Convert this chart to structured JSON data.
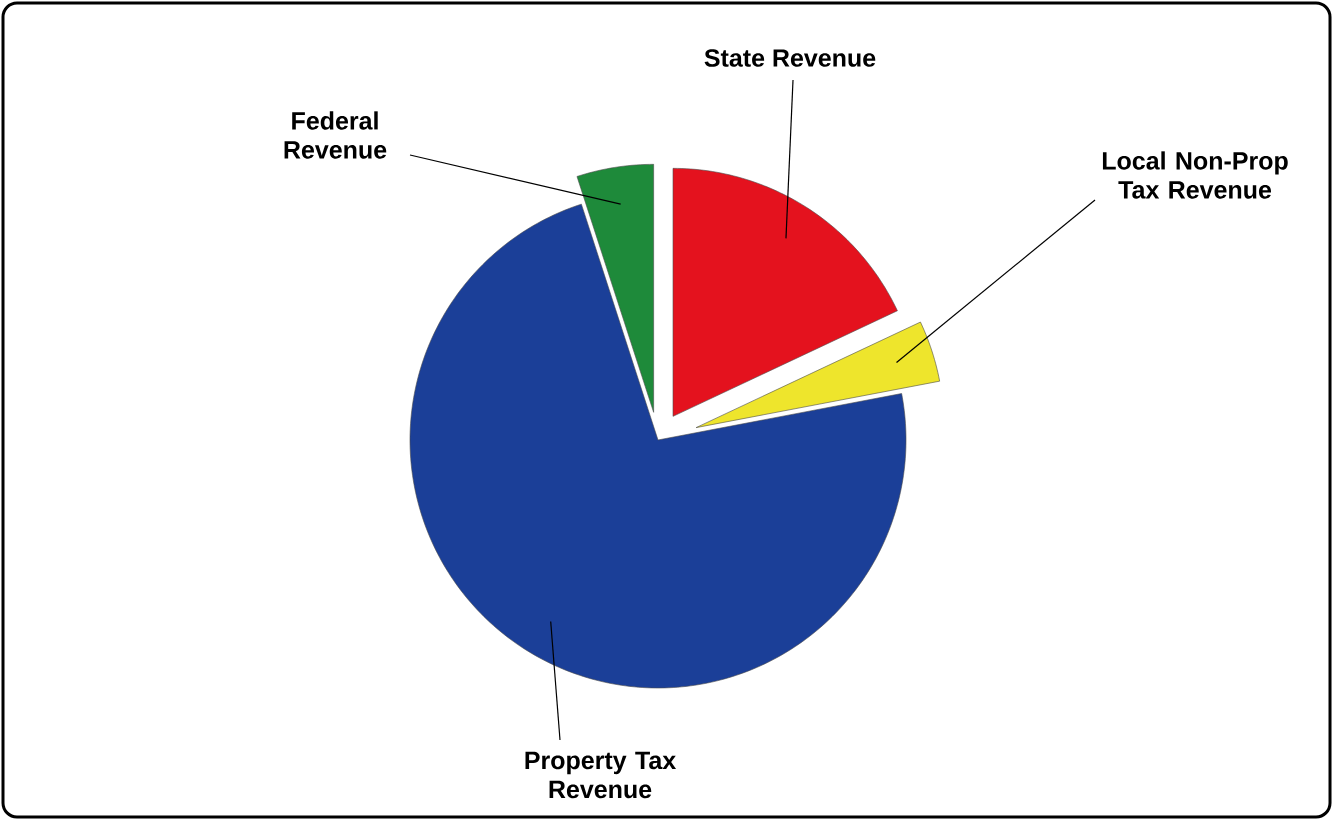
{
  "chart_data": {
    "type": "pie",
    "categories": [
      "Federal Revenue",
      "State Revenue",
      "Local Non-Prop Tax Revenue",
      "Property Tax Revenue"
    ],
    "values": [
      5,
      18,
      4,
      73
    ],
    "colors": [
      "#1e8a3a",
      "#e4121e",
      "#eee52c",
      "#1b3f98"
    ]
  }
}
